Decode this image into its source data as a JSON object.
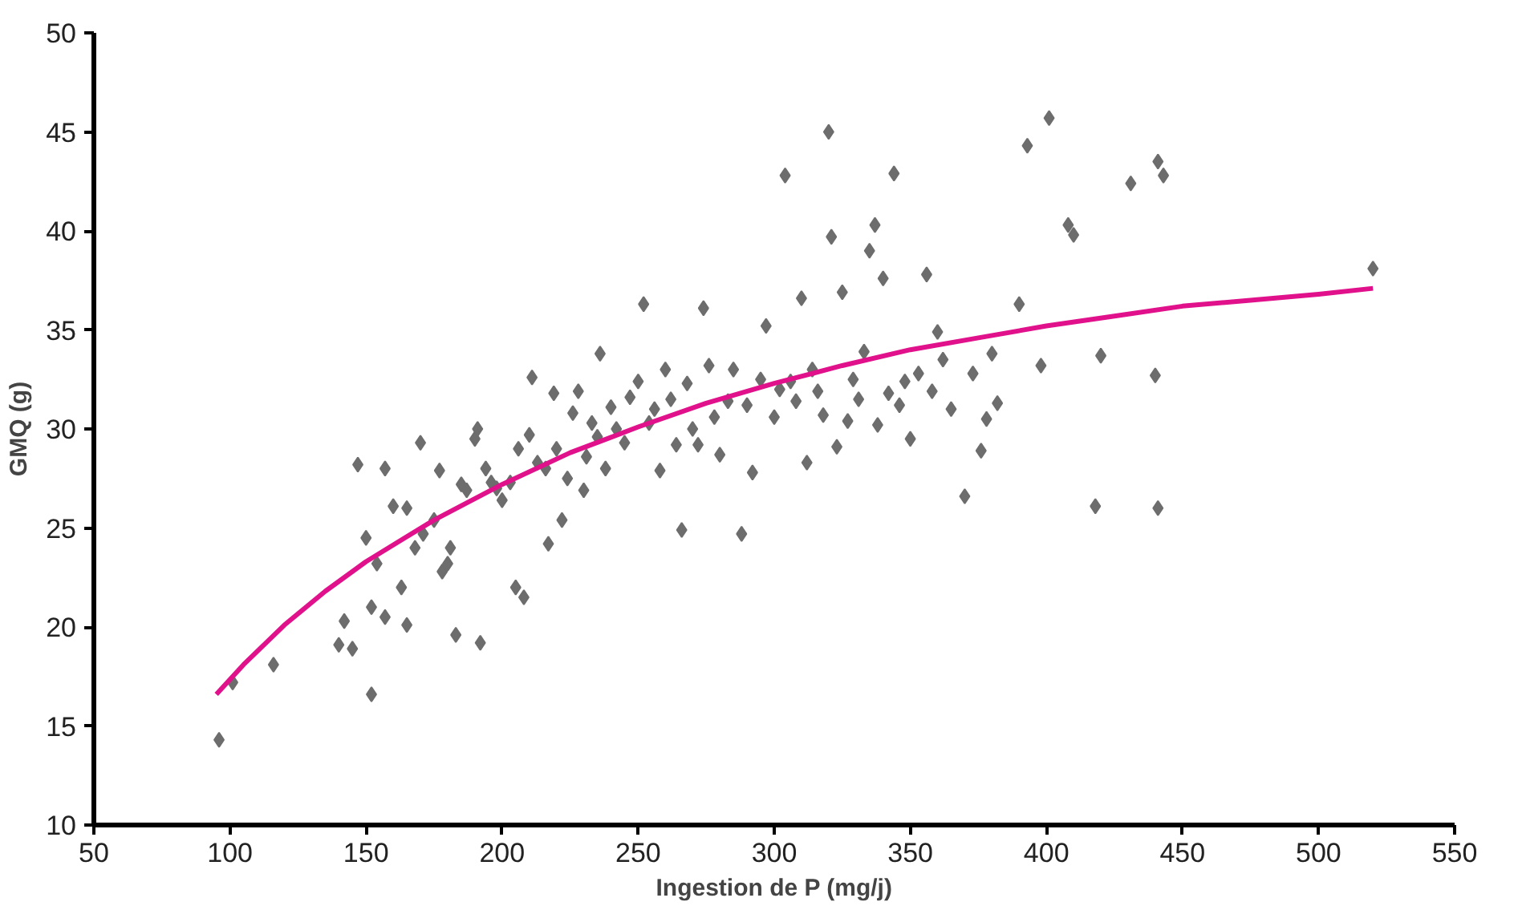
{
  "chart_data": {
    "type": "scatter",
    "xlabel": "Ingestion de P (mg/j)",
    "ylabel": "GMQ (g)",
    "xlim": [
      50,
      550
    ],
    "ylim": [
      10,
      50
    ],
    "xticks": [
      50,
      100,
      150,
      200,
      250,
      300,
      350,
      400,
      450,
      500,
      550
    ],
    "yticks": [
      10,
      15,
      20,
      25,
      30,
      35,
      40,
      45,
      50
    ],
    "grid": false,
    "series": [
      {
        "color": "#6d6d6d",
        "marker": "diamond",
        "x": [
          96,
          101,
          116,
          140,
          142,
          145,
          147,
          150,
          152,
          152,
          154,
          157,
          157,
          160,
          163,
          165,
          165,
          168,
          170,
          171,
          175,
          177,
          178,
          180,
          181,
          183,
          185,
          187,
          190,
          191,
          192,
          194,
          196,
          198,
          200,
          203,
          205,
          206,
          208,
          210,
          211,
          213,
          216,
          217,
          219,
          220,
          222,
          224,
          226,
          228,
          230,
          231,
          233,
          235,
          236,
          238,
          240,
          242,
          245,
          247,
          250,
          252,
          254,
          256,
          258,
          260,
          262,
          264,
          266,
          268,
          270,
          272,
          274,
          276,
          278,
          280,
          283,
          285,
          288,
          290,
          292,
          295,
          297,
          300,
          302,
          304,
          306,
          308,
          310,
          312,
          314,
          316,
          318,
          320,
          321,
          323,
          325,
          327,
          329,
          331,
          333,
          335,
          337,
          338,
          340,
          342,
          344,
          346,
          348,
          350,
          353,
          356,
          358,
          360,
          362,
          365,
          370,
          373,
          376,
          378,
          380,
          382,
          390,
          393,
          398,
          401,
          408,
          410,
          418,
          420,
          431,
          440,
          441,
          441,
          443,
          520
        ],
        "values": [
          14.3,
          17.2,
          18.1,
          19.1,
          20.3,
          18.9,
          28.2,
          24.5,
          16.6,
          21.0,
          23.2,
          20.5,
          28.0,
          26.1,
          22.0,
          20.1,
          26.0,
          24.0,
          29.3,
          24.7,
          25.4,
          27.9,
          22.8,
          23.2,
          24.0,
          19.6,
          27.2,
          26.9,
          29.5,
          30.0,
          19.2,
          28.0,
          27.3,
          27.0,
          26.4,
          27.3,
          22.0,
          29.0,
          21.5,
          29.7,
          32.6,
          28.3,
          28.0,
          24.2,
          31.8,
          29.0,
          25.4,
          27.5,
          30.8,
          31.9,
          26.9,
          28.6,
          30.3,
          29.6,
          33.8,
          28.0,
          31.1,
          30.0,
          29.3,
          31.6,
          32.4,
          36.3,
          30.3,
          31.0,
          27.9,
          33.0,
          31.5,
          29.2,
          24.9,
          32.3,
          30.0,
          29.2,
          36.1,
          33.2,
          30.6,
          28.7,
          31.4,
          33.0,
          24.7,
          31.2,
          27.8,
          32.5,
          35.2,
          30.6,
          32.0,
          42.8,
          32.4,
          31.4,
          36.6,
          28.3,
          33.0,
          31.9,
          30.7,
          45.0,
          39.7,
          29.1,
          36.9,
          30.4,
          32.5,
          31.5,
          33.9,
          39.0,
          40.3,
          30.2,
          37.6,
          31.8,
          42.9,
          31.2,
          32.4,
          29.5,
          32.8,
          37.8,
          31.9,
          34.9,
          33.5,
          31.0,
          26.6,
          32.8,
          28.9,
          30.5,
          33.8,
          31.3,
          36.3,
          44.3,
          33.2,
          45.7,
          40.3,
          39.8,
          26.1,
          33.7,
          42.4,
          32.7,
          43.5,
          26.0,
          42.8,
          38.1
        ]
      },
      {
        "type": "line",
        "color": "#e0118a",
        "marker": "none",
        "x": [
          95,
          105,
          120,
          135,
          150,
          175,
          200,
          225,
          250,
          275,
          300,
          325,
          350,
          375,
          400,
          425,
          450,
          475,
          500,
          520
        ],
        "values": [
          16.6,
          18.1,
          20.1,
          21.8,
          23.3,
          25.4,
          27.2,
          28.8,
          30.1,
          31.3,
          32.3,
          33.2,
          34.0,
          34.6,
          35.2,
          35.7,
          36.2,
          36.5,
          36.8,
          37.1
        ]
      }
    ]
  }
}
